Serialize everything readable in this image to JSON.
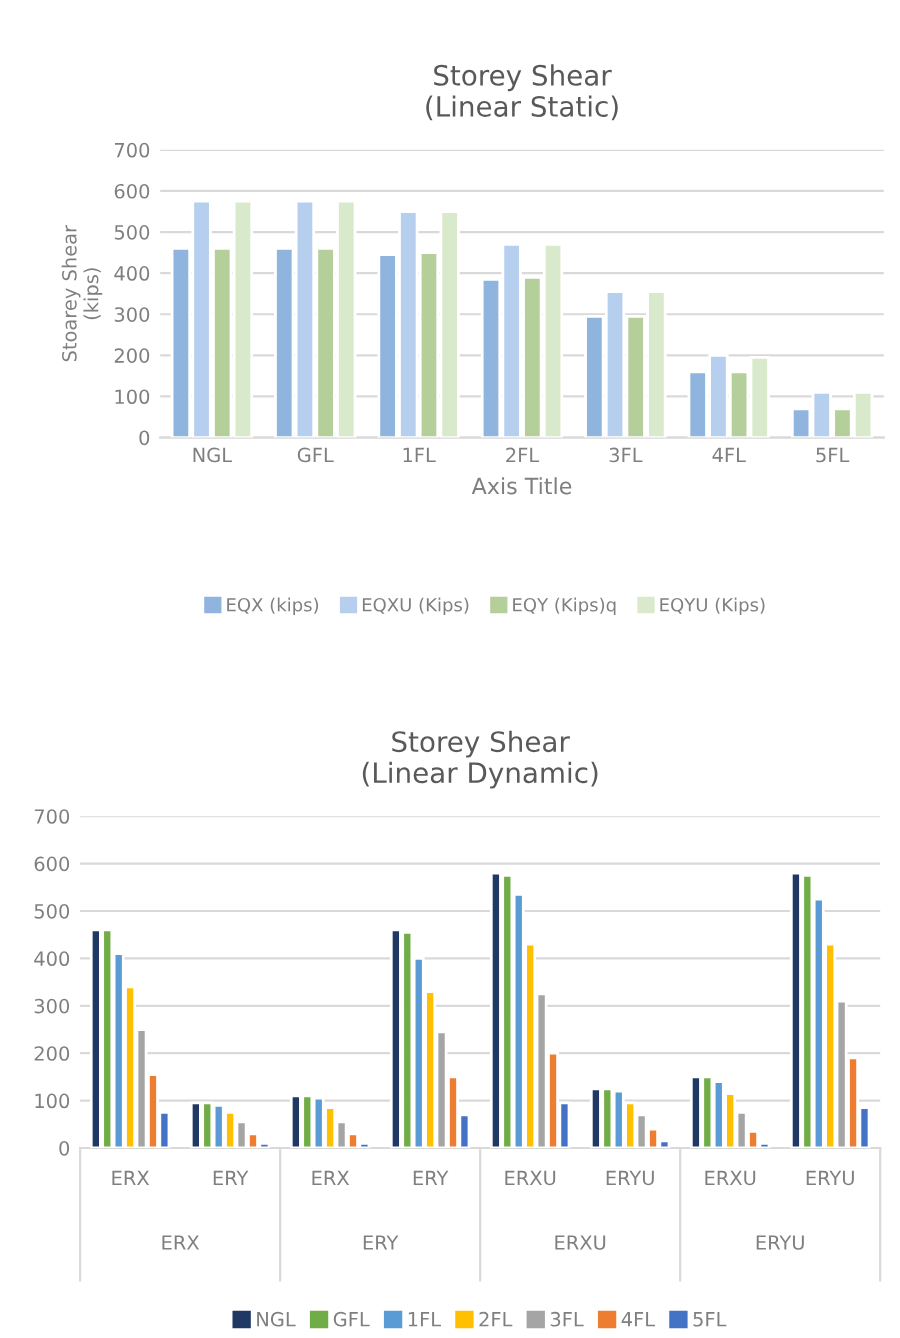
{
  "chart_data": [
    {
      "type": "bar",
      "title": "Storey Shear\n(Linear Static)",
      "xlabel": "Axis Title",
      "ylabel": "Stoarey Shear\n(kips)",
      "categories": [
        "NGL",
        "GFL",
        "1FL",
        "2FL",
        "3FL",
        "4FL",
        "5FL"
      ],
      "series": [
        {
          "name": "EQX (kips)",
          "color": "#8fb4de",
          "values": [
            460,
            460,
            445,
            385,
            295,
            160,
            70
          ]
        },
        {
          "name": "EQXU (Kips)",
          "color": "#b7cfee",
          "values": [
            575,
            575,
            550,
            470,
            355,
            200,
            110
          ]
        },
        {
          "name": "EQY (Kips)q",
          "color": "#b5cf9a",
          "values": [
            460,
            460,
            450,
            390,
            295,
            160,
            70
          ]
        },
        {
          "name": "EQYU (Kips)",
          "color": "#d9e9cc",
          "values": [
            575,
            575,
            550,
            470,
            355,
            195,
            110
          ]
        }
      ],
      "ylim": [
        0,
        700
      ],
      "yticks": [
        0,
        100,
        200,
        300,
        400,
        500,
        600,
        700
      ],
      "grid": "y",
      "legend": "bottom"
    },
    {
      "type": "bar",
      "title": "Storey Shear\n(Linear Dynamic)",
      "categories": [
        "ERX",
        "ERY",
        "ERX",
        "ERY",
        "ERXU",
        "ERYU",
        "ERXU",
        "ERYU"
      ],
      "annotations": [
        "ERX",
        "ERY",
        "ERXU",
        "ERYU"
      ],
      "series": [
        {
          "name": "NGL",
          "color": "#1f3864",
          "values": [
            460,
            95,
            110,
            460,
            580,
            125,
            150,
            580
          ]
        },
        {
          "name": "GFL",
          "color": "#70ad47",
          "values": [
            460,
            95,
            110,
            455,
            575,
            125,
            150,
            575
          ]
        },
        {
          "name": "1FL",
          "color": "#5b9bd5",
          "values": [
            410,
            90,
            105,
            400,
            535,
            120,
            140,
            525
          ]
        },
        {
          "name": "2FL",
          "color": "#ffc000",
          "values": [
            340,
            75,
            85,
            330,
            430,
            95,
            115,
            430
          ]
        },
        {
          "name": "3FL",
          "color": "#a5a5a5",
          "values": [
            250,
            55,
            55,
            245,
            325,
            70,
            75,
            310
          ]
        },
        {
          "name": "4FL",
          "color": "#ed7d31",
          "values": [
            155,
            30,
            30,
            150,
            200,
            40,
            35,
            190
          ]
        },
        {
          "name": "5FL",
          "color": "#4472c4",
          "values": [
            75,
            10,
            10,
            70,
            95,
            15,
            10,
            85
          ]
        }
      ],
      "ylim": [
        0,
        700
      ],
      "yticks": [
        0,
        100,
        200,
        300,
        400,
        500,
        600,
        700
      ],
      "grid": "y",
      "legend": "bottom"
    }
  ]
}
